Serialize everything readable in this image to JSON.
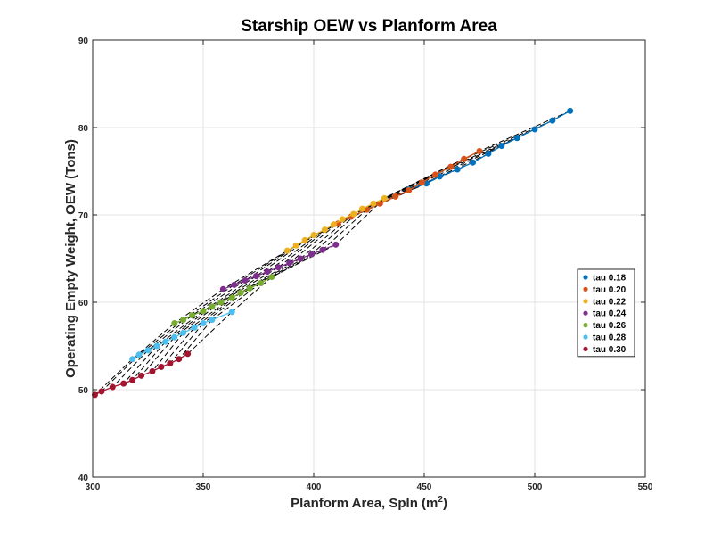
{
  "chart_data": {
    "type": "line",
    "title": "Starship OEW vs Planform Area",
    "xlabel": "Planform Area, Spln (m",
    "xlabel_sup": "2",
    "xlabel_end": ")",
    "ylabel": "Operating Empty Weight, OEW (Tons)",
    "xlim": [
      300,
      550
    ],
    "ylim": [
      40,
      90
    ],
    "xticks": [
      300,
      350,
      400,
      450,
      500,
      550
    ],
    "yticks": [
      40,
      50,
      60,
      70,
      80,
      90
    ],
    "grid": true,
    "legend_position": "right",
    "series": [
      {
        "name": "tau 0.18",
        "color": "#0072BD",
        "x": [
          443,
          451,
          457,
          465,
          472,
          479,
          485,
          492,
          500,
          508,
          516
        ],
        "y": [
          72.9,
          73.6,
          74.4,
          75.2,
          76.0,
          77.0,
          77.9,
          78.8,
          79.8,
          80.8,
          81.9
        ]
      },
      {
        "name": "tau 0.20",
        "color": "#D95319",
        "x": [
          411,
          417,
          424,
          430,
          437,
          443,
          449,
          455,
          462,
          468,
          475
        ],
        "y": [
          69.0,
          69.8,
          70.6,
          71.3,
          72.1,
          72.8,
          73.7,
          74.6,
          75.5,
          76.4,
          77.3
        ]
      },
      {
        "name": "tau 0.22",
        "color": "#EDB120",
        "x": [
          388,
          392,
          396,
          400,
          405,
          409,
          413,
          418,
          422,
          427,
          432
        ],
        "y": [
          65.9,
          66.5,
          67.1,
          67.7,
          68.3,
          68.9,
          69.5,
          70.1,
          70.7,
          71.3,
          71.9
        ]
      },
      {
        "name": "tau 0.24",
        "color": "#7E2F8E",
        "x": [
          359,
          364,
          369,
          374,
          379,
          384,
          389,
          394,
          399,
          404,
          410
        ],
        "y": [
          61.5,
          62.0,
          62.5,
          63.0,
          63.5,
          64.0,
          64.5,
          65.0,
          65.5,
          66.0,
          66.6
        ]
      },
      {
        "name": "tau 0.26",
        "color": "#77AC30",
        "x": [
          337,
          341,
          345,
          350,
          354,
          358,
          363,
          367,
          371,
          376,
          381
        ],
        "y": [
          57.6,
          58.0,
          58.5,
          59.0,
          59.5,
          60.0,
          60.5,
          61.1,
          61.6,
          62.2,
          62.9
        ]
      },
      {
        "name": "tau 0.28",
        "color": "#4DBEEE",
        "x": [
          318,
          321,
          325,
          329,
          333,
          337,
          341,
          346,
          350,
          354,
          363
        ],
        "y": [
          53.5,
          54.0,
          54.5,
          55.0,
          55.5,
          56.0,
          56.5,
          57.1,
          57.6,
          58.0,
          58.9
        ]
      },
      {
        "name": "tau 0.30",
        "color": "#A2142F",
        "x": [
          301,
          304,
          309,
          314,
          318,
          322,
          327,
          331,
          335,
          339,
          343
        ],
        "y": [
          49.4,
          49.8,
          50.3,
          50.7,
          51.1,
          51.6,
          52.1,
          52.6,
          53.0,
          53.5,
          54.1
        ]
      }
    ]
  }
}
